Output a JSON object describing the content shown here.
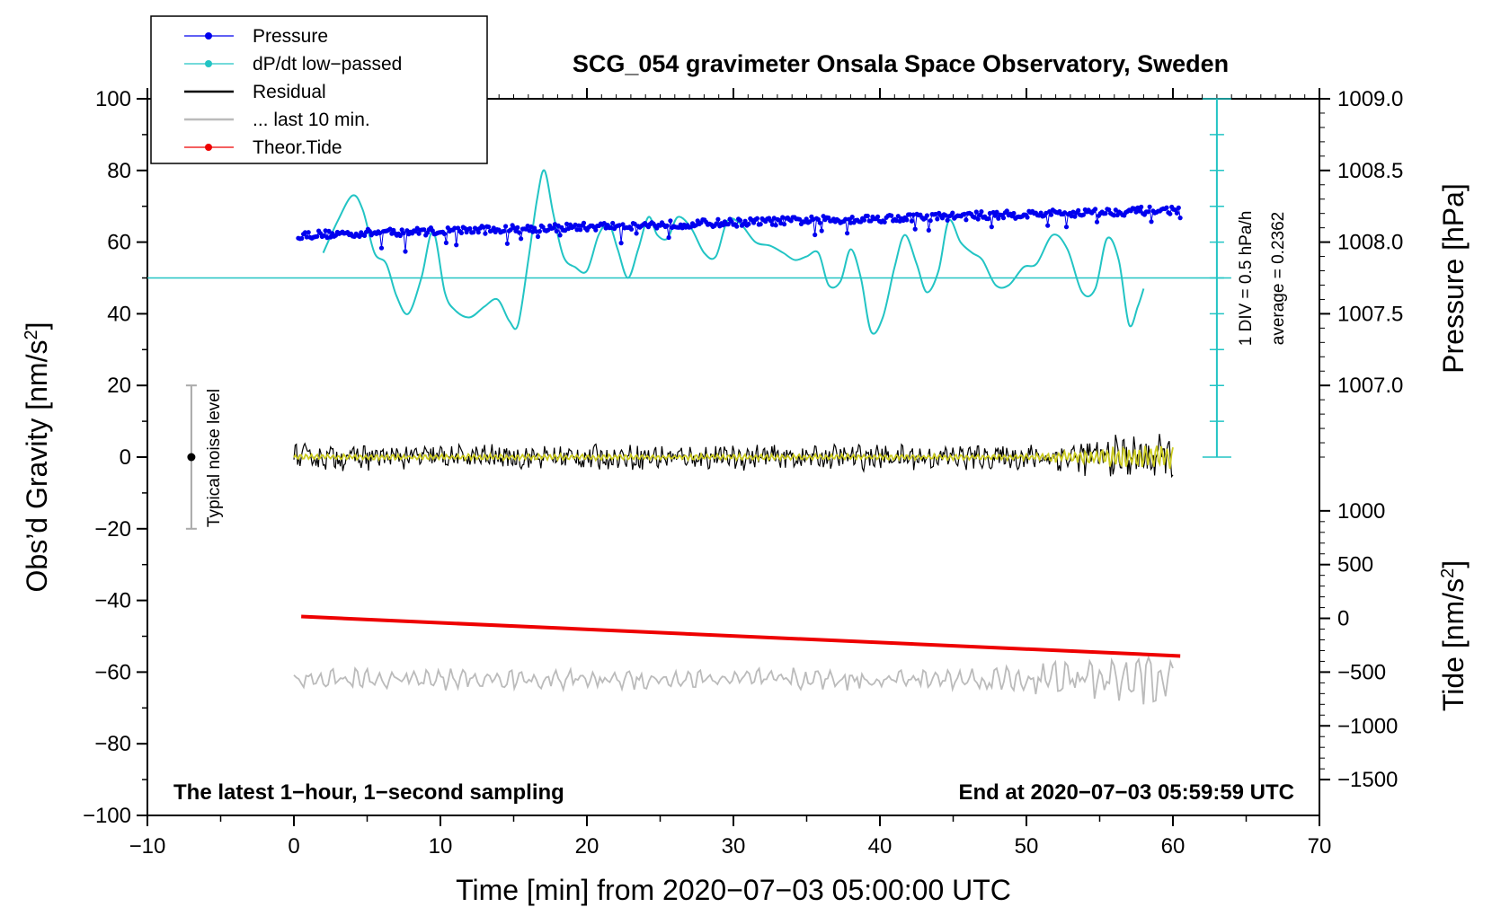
{
  "chart_data": {
    "type": "line",
    "title": "SCG_054 gravimeter Onsala Space Observatory, Sweden",
    "xlabel": "Time [min] from 2020−07−03 05:00:00 UTC",
    "ylabel_prefix": "Obs’d Gravity [nm/s",
    "ylabel_sup": "2",
    "ylabel_suffix": "]",
    "xlim": [
      -10,
      70
    ],
    "ylim": [
      -100,
      100
    ],
    "x_ticks": [
      -10,
      0,
      10,
      20,
      30,
      40,
      50,
      60,
      70
    ],
    "x_tick_labels": [
      "−10",
      "0",
      "10",
      "20",
      "30",
      "40",
      "50",
      "60",
      "70"
    ],
    "y_ticks": [
      -100,
      -80,
      -60,
      -40,
      -20,
      0,
      20,
      40,
      60,
      80,
      100
    ],
    "y_tick_labels": [
      "−100",
      "−80",
      "−60",
      "−40",
      "−20",
      "0",
      "20",
      "40",
      "60",
      "80",
      "100"
    ],
    "right_pressure_axis": {
      "label": "Pressure [hPa]",
      "ticks_hpa": [
        1007.0,
        1007.5,
        1008.0,
        1008.5,
        1009.0
      ],
      "tick_labels": [
        "1007.0",
        "1007.5",
        "1008.0",
        "1008.5",
        "1009.0"
      ],
      "mapping": {
        "hpa_at_y0": 1006.5,
        "nm_per_hpa": 40
      }
    },
    "right_tide_axis": {
      "label_prefix": "Tide [nm/s",
      "label_sup": "2",
      "label_suffix": "]",
      "ticks": [
        -1500,
        -1000,
        -500,
        0,
        500,
        1000
      ],
      "tick_labels": [
        "−1500",
        "−1000",
        "−500",
        "0",
        "500",
        "1000"
      ],
      "mapping": {
        "tide_at_y0": 1500,
        "nm_per_tide_unit": 0.03
      }
    },
    "dpdt_scale": {
      "x": 63,
      "range": [
        0,
        100
      ],
      "divisions": 10,
      "label_div": "1 DIV = 0.5 hPa/h",
      "label_avg": "average = 0.2362",
      "baseline_y": 50
    },
    "noise_bar": {
      "x": -7,
      "center": 0,
      "range": [
        -20,
        20
      ],
      "label": "Typical noise level"
    },
    "notes": {
      "left": "The latest 1−hour, 1−second sampling",
      "right": "End at 2020−07−03 05:59:59 UTC"
    },
    "legend": [
      {
        "label": "Pressure",
        "color": "#0000ee",
        "style": "line-dot"
      },
      {
        "label": "dP/dt low−passed",
        "color": "#22c4c4",
        "style": "line-dot"
      },
      {
        "label": "Residual",
        "color": "#000000",
        "style": "line"
      },
      {
        "label": "... last 10 min.",
        "color": "#bbbbbb",
        "style": "line"
      },
      {
        "label": "Theor.Tide",
        "color": "#ee0000",
        "style": "line-dot"
      }
    ],
    "series": [
      {
        "name": "Pressure",
        "color": "#0000ee",
        "x_range": [
          0.3,
          60.5
        ],
        "y_start": 62,
        "y_end": 69,
        "point_count": 520,
        "note": "approximately linear rise from about 1008.05 to 1008.23 hPa with scatter"
      },
      {
        "name": "dP/dt low−passed",
        "color": "#22c4c4",
        "x": [
          2,
          3,
          4,
          4.7,
          5.5,
          6.3,
          7,
          7.8,
          8.7,
          9.5,
          10.3,
          11,
          12,
          13,
          13.9,
          14.7,
          15.3,
          16,
          16.6,
          17.1,
          17.7,
          18.4,
          19.2,
          20,
          20.8,
          21.5,
          22.1,
          22.8,
          23.5,
          24.2,
          24.8,
          25.5,
          26.2,
          27.1,
          28,
          28.8,
          29.6,
          30.5,
          31.5,
          32.5,
          33.4,
          34.2,
          35,
          35.8,
          36.5,
          37.3,
          38,
          38.7,
          39.4,
          40.2,
          41,
          41.7,
          42.5,
          43.2,
          44,
          44.7,
          45.5,
          46.3,
          47,
          47.9,
          48.8,
          49.8,
          50.7,
          51.8,
          52.8,
          53.8,
          54.7,
          55.5,
          56.3,
          57,
          57.6,
          58
        ],
        "y": [
          57,
          66,
          73,
          69,
          57,
          54,
          45,
          40,
          50,
          63,
          46,
          41,
          39,
          42,
          44,
          38,
          37,
          55,
          72,
          80,
          68,
          56,
          53,
          52,
          62,
          65,
          58,
          50,
          58,
          67,
          62,
          61,
          67,
          64,
          57,
          56,
          66,
          65,
          60,
          59,
          57,
          55,
          56,
          57,
          48,
          49,
          58,
          50,
          35,
          39,
          53,
          62,
          54,
          46,
          52,
          66,
          60,
          57,
          55,
          48,
          48,
          53,
          54,
          62,
          58,
          46,
          47,
          61,
          55,
          37,
          42,
          47
        ]
      },
      {
        "name": "Residual",
        "color": "#000000",
        "x_range": [
          0,
          60
        ],
        "center": 0,
        "amplitude_early": 3,
        "amplitude_late": 6,
        "point_count": 720
      },
      {
        "name": "Residual (smoothed)",
        "color": "#cccc22",
        "x_range": [
          0,
          60
        ],
        "center": 0,
        "amplitude_early": 0.8,
        "amplitude_late": 4
      },
      {
        "name": "... last 10 min.",
        "color": "#bbbbbb",
        "x_range": [
          0,
          60
        ],
        "center": -62,
        "amplitude_early": 2.5,
        "amplitude_late": 6,
        "point_count": 360
      },
      {
        "name": "Theor.Tide",
        "color": "#ee0000",
        "x": [
          0.5,
          60.5
        ],
        "y": [
          -44.5,
          -55.5
        ]
      }
    ]
  }
}
